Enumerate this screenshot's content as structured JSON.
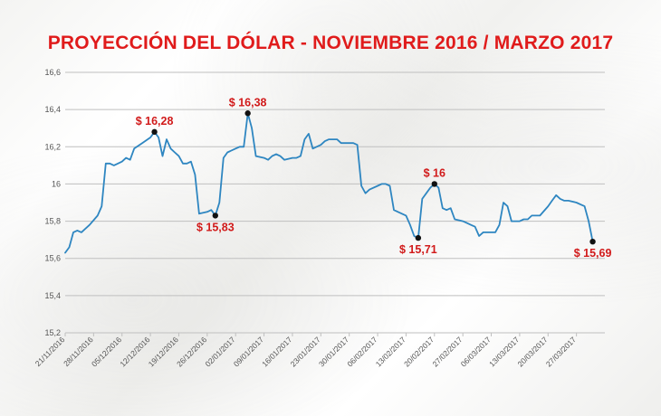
{
  "title": "PROYECCIÓN DEL DÓLAR - NOVIEMBRE 2016 / MARZO 2017",
  "colors": {
    "title": "#e01b1b",
    "line": "#2e86c1",
    "annotation": "#d11a1a",
    "gridline": "#bfbfbf",
    "marker": "#111111"
  },
  "chart_data": {
    "type": "line",
    "title": "PROYECCIÓN DEL DÓLAR - NOVIEMBRE 2016 / MARZO 2017",
    "xlabel": "",
    "ylabel": "",
    "ylim": [
      15.2,
      16.6
    ],
    "yticks": [
      "15,2",
      "15,4",
      "15,6",
      "15,8",
      "16",
      "16,2",
      "16,4",
      "16,6"
    ],
    "ytick_values": [
      15.2,
      15.4,
      15.6,
      15.8,
      16.0,
      16.2,
      16.4,
      16.6
    ],
    "grid": true,
    "xlim": [
      "21/11/2016",
      "03/04/2017"
    ],
    "xticks": [
      "21/11/2016",
      "28/11/2016",
      "05/12/2016",
      "12/12/2016",
      "19/12/2016",
      "26/12/2016",
      "02/01/2017",
      "09/01/2017",
      "16/01/2017",
      "23/01/2017",
      "30/01/2017",
      "06/02/2017",
      "13/02/2017",
      "20/02/2017",
      "27/02/2017",
      "06/03/2017",
      "13/03/2017",
      "20/03/2017",
      "27/03/2017"
    ],
    "series": [
      {
        "points": [
          [
            "21/11/2016",
            15.63
          ],
          [
            "22/11/2016",
            15.66
          ],
          [
            "23/11/2016",
            15.74
          ],
          [
            "24/11/2016",
            15.75
          ],
          [
            "25/11/2016",
            15.74
          ],
          [
            "27/11/2016",
            15.78
          ],
          [
            "29/11/2016",
            15.83
          ],
          [
            "30/11/2016",
            15.88
          ],
          [
            "01/12/2016",
            16.11
          ],
          [
            "02/12/2016",
            16.11
          ],
          [
            "03/12/2016",
            16.1
          ],
          [
            "05/12/2016",
            16.12
          ],
          [
            "06/12/2016",
            16.14
          ],
          [
            "07/12/2016",
            16.13
          ],
          [
            "08/12/2016",
            16.19
          ],
          [
            "10/12/2016",
            16.22
          ],
          [
            "12/12/2016",
            16.25
          ],
          [
            "13/12/2016",
            16.28
          ],
          [
            "14/12/2016",
            16.25
          ],
          [
            "15/12/2016",
            16.15
          ],
          [
            "16/12/2016",
            16.24
          ],
          [
            "17/12/2016",
            16.19
          ],
          [
            "18/12/2016",
            16.17
          ],
          [
            "19/12/2016",
            16.15
          ],
          [
            "20/12/2016",
            16.11
          ],
          [
            "21/12/2016",
            16.11
          ],
          [
            "22/12/2016",
            16.12
          ],
          [
            "23/12/2016",
            16.05
          ],
          [
            "24/12/2016",
            15.84
          ],
          [
            "26/12/2016",
            15.85
          ],
          [
            "27/12/2016",
            15.86
          ],
          [
            "28/12/2016",
            15.83
          ],
          [
            "29/12/2016",
            15.9
          ],
          [
            "30/12/2016",
            16.14
          ],
          [
            "31/12/2016",
            16.17
          ],
          [
            "02/01/2017",
            16.19
          ],
          [
            "03/01/2017",
            16.2
          ],
          [
            "04/01/2017",
            16.2
          ],
          [
            "05/01/2017",
            16.38
          ],
          [
            "06/01/2017",
            16.3
          ],
          [
            "07/01/2017",
            16.15
          ],
          [
            "09/01/2017",
            16.14
          ],
          [
            "10/01/2017",
            16.13
          ],
          [
            "11/01/2017",
            16.15
          ],
          [
            "12/01/2017",
            16.16
          ],
          [
            "13/01/2017",
            16.15
          ],
          [
            "14/01/2017",
            16.13
          ],
          [
            "16/01/2017",
            16.14
          ],
          [
            "17/01/2017",
            16.14
          ],
          [
            "18/01/2017",
            16.15
          ],
          [
            "19/01/2017",
            16.24
          ],
          [
            "20/01/2017",
            16.27
          ],
          [
            "21/01/2017",
            16.19
          ],
          [
            "23/01/2017",
            16.21
          ],
          [
            "24/01/2017",
            16.23
          ],
          [
            "25/01/2017",
            16.24
          ],
          [
            "26/01/2017",
            16.24
          ],
          [
            "27/01/2017",
            16.24
          ],
          [
            "28/01/2017",
            16.22
          ],
          [
            "30/01/2017",
            16.22
          ],
          [
            "31/01/2017",
            16.22
          ],
          [
            "01/02/2017",
            16.21
          ],
          [
            "02/02/2017",
            15.99
          ],
          [
            "03/02/2017",
            15.95
          ],
          [
            "04/02/2017",
            15.97
          ],
          [
            "06/02/2017",
            15.99
          ],
          [
            "07/02/2017",
            16.0
          ],
          [
            "08/02/2017",
            16.0
          ],
          [
            "09/02/2017",
            15.99
          ],
          [
            "10/02/2017",
            15.86
          ],
          [
            "11/02/2017",
            15.85
          ],
          [
            "13/02/2017",
            15.83
          ],
          [
            "14/02/2017",
            15.78
          ],
          [
            "15/02/2017",
            15.72
          ],
          [
            "16/02/2017",
            15.71
          ],
          [
            "17/02/2017",
            15.92
          ],
          [
            "18/02/2017",
            15.95
          ],
          [
            "19/02/2017",
            15.98
          ],
          [
            "20/02/2017",
            16.0
          ],
          [
            "21/02/2017",
            15.98
          ],
          [
            "22/02/2017",
            15.87
          ],
          [
            "23/02/2017",
            15.86
          ],
          [
            "24/02/2017",
            15.87
          ],
          [
            "25/02/2017",
            15.81
          ],
          [
            "27/02/2017",
            15.8
          ],
          [
            "28/02/2017",
            15.79
          ],
          [
            "01/03/2017",
            15.78
          ],
          [
            "02/03/2017",
            15.77
          ],
          [
            "03/03/2017",
            15.72
          ],
          [
            "04/03/2017",
            15.74
          ],
          [
            "06/03/2017",
            15.74
          ],
          [
            "07/03/2017",
            15.74
          ],
          [
            "08/03/2017",
            15.78
          ],
          [
            "09/03/2017",
            15.9
          ],
          [
            "10/03/2017",
            15.88
          ],
          [
            "11/03/2017",
            15.8
          ],
          [
            "13/03/2017",
            15.8
          ],
          [
            "14/03/2017",
            15.81
          ],
          [
            "15/03/2017",
            15.81
          ],
          [
            "16/03/2017",
            15.83
          ],
          [
            "17/03/2017",
            15.83
          ],
          [
            "18/03/2017",
            15.83
          ],
          [
            "20/03/2017",
            15.88
          ],
          [
            "21/03/2017",
            15.91
          ],
          [
            "22/03/2017",
            15.94
          ],
          [
            "23/03/2017",
            15.92
          ],
          [
            "24/03/2017",
            15.91
          ],
          [
            "25/03/2017",
            15.91
          ],
          [
            "27/03/2017",
            15.9
          ],
          [
            "28/03/2017",
            15.89
          ],
          [
            "29/03/2017",
            15.88
          ],
          [
            "30/03/2017",
            15.8
          ],
          [
            "31/03/2017",
            15.69
          ]
        ]
      }
    ],
    "annotations": [
      {
        "date": "13/12/2016",
        "value": 16.28,
        "label": "$ 16,28",
        "position": "above"
      },
      {
        "date": "28/12/2016",
        "value": 15.83,
        "label": "$ 15,83",
        "position": "below"
      },
      {
        "date": "05/01/2017",
        "value": 16.38,
        "label": "$ 16,38",
        "position": "above"
      },
      {
        "date": "16/02/2017",
        "value": 15.71,
        "label": "$ 15,71",
        "position": "below"
      },
      {
        "date": "20/02/2017",
        "value": 16.0,
        "label": "$ 16",
        "position": "above"
      },
      {
        "date": "31/03/2017",
        "value": 15.69,
        "label": "$ 15,69",
        "position": "below"
      }
    ]
  }
}
